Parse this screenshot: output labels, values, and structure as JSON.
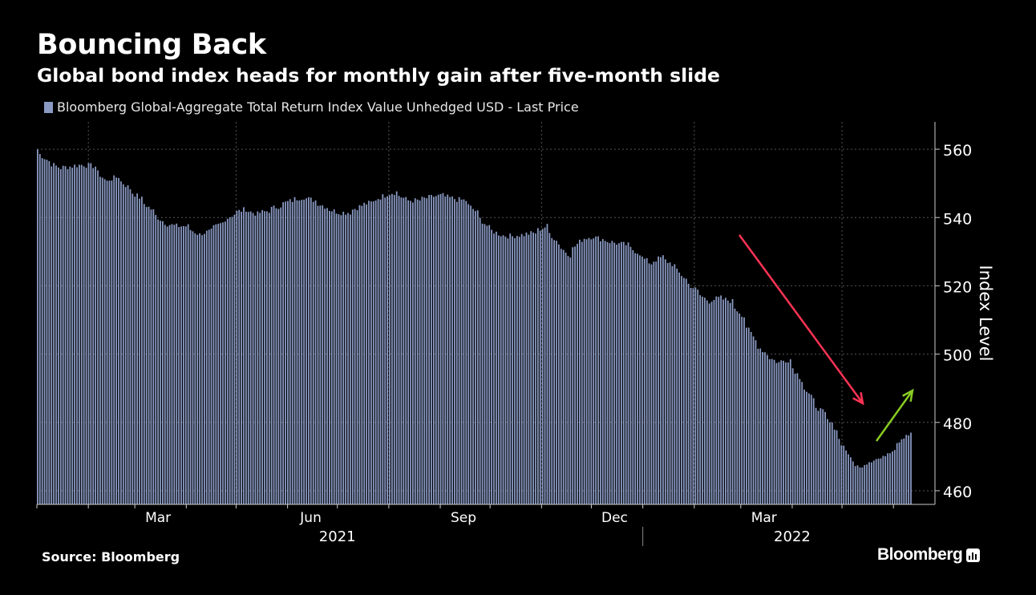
{
  "title": "Bouncing Back",
  "subtitle": "Global bond index heads for monthly gain after five-month slide",
  "legend": {
    "label": "Bloomberg Global-Aggregate Total Return Index Value Unhedged USD - Last Price"
  },
  "source": "Source: Bloomberg",
  "brand": "Bloomberg",
  "colors": {
    "background": "#000000",
    "bars": "#8a9ac3",
    "grid": "#555555",
    "down_arrow": "#ff3355",
    "up_arrow": "#88cc22"
  },
  "chart_data": {
    "type": "bar",
    "series_name": "Bloomberg Global-Aggregate Total Return Index Value Unhedged USD - Last Price",
    "ylabel": "Index Level",
    "ylim": [
      456,
      568
    ],
    "yticks": [
      460,
      480,
      500,
      520,
      540,
      560
    ],
    "x_tick_labels": [
      "Mar",
      "Jun",
      "Sep",
      "Dec",
      "Mar"
    ],
    "year_labels": [
      "2021",
      "2022"
    ],
    "grid": true,
    "y_axis_position": "right",
    "annotations": [
      {
        "type": "arrow",
        "direction": "down",
        "color": "red"
      },
      {
        "type": "arrow",
        "direction": "up",
        "color": "green"
      }
    ],
    "weekly_anchors": [
      [
        "2021-01-01",
        560
      ],
      [
        "2021-01-08",
        556.5
      ],
      [
        "2021-01-15",
        554.5
      ],
      [
        "2021-01-22",
        555
      ],
      [
        "2021-01-29",
        555.5
      ],
      [
        "2021-02-05",
        555
      ],
      [
        "2021-02-12",
        550.5
      ],
      [
        "2021-02-19",
        552
      ],
      [
        "2021-02-26",
        548.5
      ],
      [
        "2021-03-05",
        545.5
      ],
      [
        "2021-03-12",
        542
      ],
      [
        "2021-03-19",
        538.5
      ],
      [
        "2021-03-26",
        537.5
      ],
      [
        "2021-04-02",
        537.5
      ],
      [
        "2021-04-09",
        535
      ],
      [
        "2021-04-16",
        536
      ],
      [
        "2021-04-23",
        538.5
      ],
      [
        "2021-04-30",
        541
      ],
      [
        "2021-05-07",
        542.5
      ],
      [
        "2021-05-14",
        541
      ],
      [
        "2021-05-21",
        542
      ],
      [
        "2021-05-28",
        543.5
      ],
      [
        "2021-06-04",
        545
      ],
      [
        "2021-06-11",
        546
      ],
      [
        "2021-06-18",
        545
      ],
      [
        "2021-06-25",
        543
      ],
      [
        "2021-07-02",
        541.5
      ],
      [
        "2021-07-09",
        541.5
      ],
      [
        "2021-07-16",
        543.5
      ],
      [
        "2021-07-23",
        544.5
      ],
      [
        "2021-07-30",
        546.5
      ],
      [
        "2021-08-06",
        547.5
      ],
      [
        "2021-08-13",
        545
      ],
      [
        "2021-08-20",
        545
      ],
      [
        "2021-08-27",
        546
      ],
      [
        "2021-09-03",
        546.5
      ],
      [
        "2021-09-10",
        545.5
      ],
      [
        "2021-09-17",
        545
      ],
      [
        "2021-09-24",
        541.5
      ],
      [
        "2021-10-01",
        537
      ],
      [
        "2021-10-08",
        535
      ],
      [
        "2021-10-15",
        534.5
      ],
      [
        "2021-10-22",
        535
      ],
      [
        "2021-10-29",
        535.5
      ],
      [
        "2021-11-05",
        537.5
      ],
      [
        "2021-11-12",
        532.5
      ],
      [
        "2021-11-19",
        529
      ],
      [
        "2021-11-26",
        533.5
      ],
      [
        "2021-12-03",
        534.5
      ],
      [
        "2021-12-10",
        533.5
      ],
      [
        "2021-12-17",
        532.5
      ],
      [
        "2021-12-24",
        532
      ],
      [
        "2021-12-31",
        529.5
      ],
      [
        "2022-01-07",
        526.5
      ],
      [
        "2022-01-14",
        528.5
      ],
      [
        "2022-01-21",
        526
      ],
      [
        "2022-01-28",
        522
      ],
      [
        "2022-02-04",
        518.5
      ],
      [
        "2022-02-11",
        515.5
      ],
      [
        "2022-02-18",
        516.5
      ],
      [
        "2022-02-25",
        515.5
      ],
      [
        "2022-03-04",
        511
      ],
      [
        "2022-03-11",
        504
      ],
      [
        "2022-03-18",
        500
      ],
      [
        "2022-03-25",
        497.5
      ],
      [
        "2022-04-01",
        498.5
      ],
      [
        "2022-04-08",
        492.5
      ],
      [
        "2022-04-15",
        486.5
      ],
      [
        "2022-04-22",
        482.5
      ],
      [
        "2022-04-29",
        478
      ],
      [
        "2022-05-06",
        471
      ],
      [
        "2022-05-13",
        466.5
      ],
      [
        "2022-05-20",
        469
      ],
      [
        "2022-05-27",
        469.5
      ],
      [
        "2022-06-03",
        472.5
      ],
      [
        "2022-06-10",
        476.5
      ]
    ]
  }
}
